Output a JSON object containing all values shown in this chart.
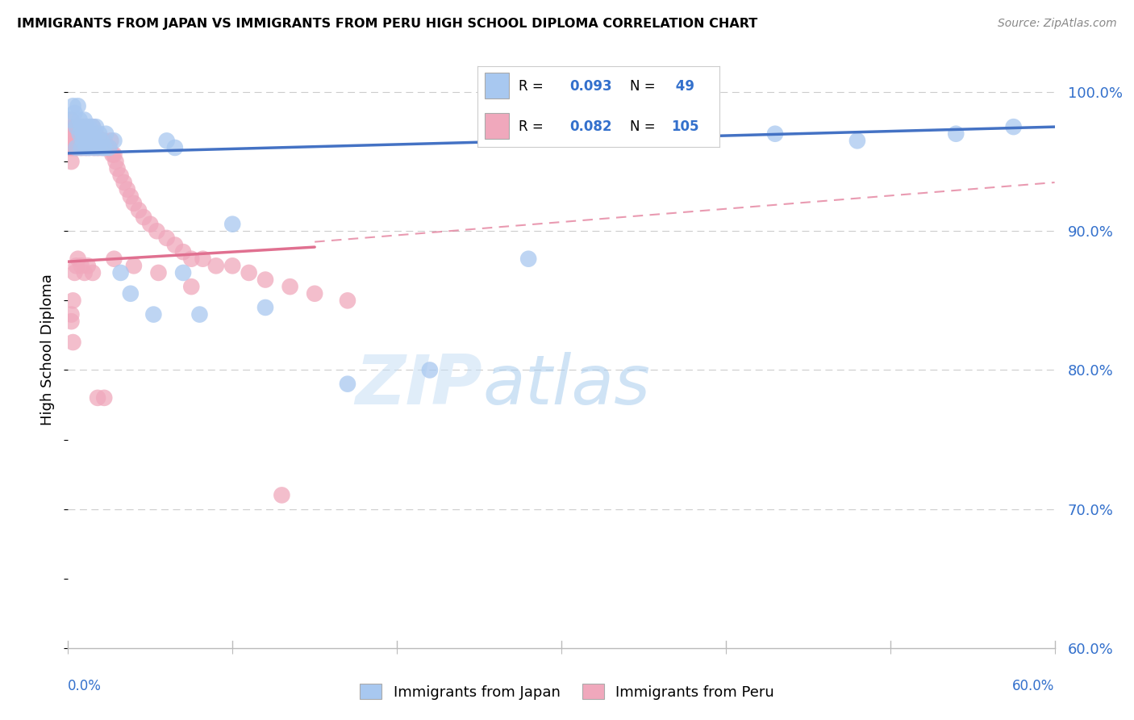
{
  "title": "IMMIGRANTS FROM JAPAN VS IMMIGRANTS FROM PERU HIGH SCHOOL DIPLOMA CORRELATION CHART",
  "source": "Source: ZipAtlas.com",
  "ylabel": "High School Diploma",
  "legend_japan_label": "Immigrants from Japan",
  "legend_peru_label": "Immigrants from Peru",
  "legend_R_japan": "0.093",
  "legend_N_japan": "49",
  "legend_R_peru": "0.082",
  "legend_N_peru": "105",
  "color_japan": "#a8c8f0",
  "color_peru": "#f0a8bc",
  "color_japan_line": "#4472c4",
  "color_peru_line": "#e07090",
  "color_blue_text": "#3370cc",
  "xlim": [
    0.0,
    0.6
  ],
  "ylim": [
    0.6,
    1.03
  ],
  "japan_line": [
    0.956,
    0.975
  ],
  "peru_line_solid": [
    0.878,
    0.92
  ],
  "peru_line_dash": [
    0.878,
    0.935
  ],
  "japan_x": [
    0.002,
    0.003,
    0.004,
    0.005,
    0.005,
    0.006,
    0.007,
    0.007,
    0.008,
    0.008,
    0.009,
    0.009,
    0.01,
    0.01,
    0.011,
    0.011,
    0.012,
    0.013,
    0.013,
    0.014,
    0.015,
    0.016,
    0.016,
    0.017,
    0.018,
    0.019,
    0.02,
    0.021,
    0.022,
    0.023,
    0.025,
    0.028,
    0.032,
    0.038,
    0.052,
    0.06,
    0.065,
    0.07,
    0.08,
    0.1,
    0.12,
    0.17,
    0.22,
    0.28,
    0.39,
    0.43,
    0.48,
    0.54,
    0.575
  ],
  "japan_y": [
    0.98,
    0.99,
    0.985,
    0.975,
    0.96,
    0.99,
    0.97,
    0.98,
    0.96,
    0.975,
    0.965,
    0.97,
    0.97,
    0.98,
    0.96,
    0.975,
    0.97,
    0.96,
    0.975,
    0.965,
    0.975,
    0.96,
    0.965,
    0.975,
    0.96,
    0.97,
    0.965,
    0.96,
    0.96,
    0.97,
    0.96,
    0.965,
    0.87,
    0.855,
    0.84,
    0.965,
    0.96,
    0.87,
    0.84,
    0.905,
    0.845,
    0.79,
    0.8,
    0.88,
    0.97,
    0.97,
    0.965,
    0.97,
    0.975
  ],
  "peru_x": [
    0.001,
    0.001,
    0.002,
    0.002,
    0.002,
    0.003,
    0.003,
    0.003,
    0.004,
    0.004,
    0.004,
    0.005,
    0.005,
    0.005,
    0.006,
    0.006,
    0.006,
    0.007,
    0.007,
    0.007,
    0.008,
    0.008,
    0.008,
    0.009,
    0.009,
    0.009,
    0.01,
    0.01,
    0.01,
    0.01,
    0.011,
    0.011,
    0.011,
    0.012,
    0.012,
    0.012,
    0.013,
    0.013,
    0.013,
    0.014,
    0.014,
    0.015,
    0.015,
    0.015,
    0.016,
    0.016,
    0.017,
    0.017,
    0.018,
    0.018,
    0.019,
    0.019,
    0.02,
    0.02,
    0.021,
    0.021,
    0.022,
    0.022,
    0.023,
    0.024,
    0.025,
    0.026,
    0.027,
    0.028,
    0.029,
    0.03,
    0.032,
    0.034,
    0.036,
    0.038,
    0.04,
    0.043,
    0.046,
    0.05,
    0.054,
    0.06,
    0.065,
    0.07,
    0.075,
    0.082,
    0.09,
    0.1,
    0.11,
    0.12,
    0.135,
    0.15,
    0.17,
    0.075,
    0.055,
    0.04,
    0.028,
    0.015,
    0.012,
    0.01,
    0.008,
    0.006,
    0.005,
    0.004,
    0.003,
    0.002,
    0.002,
    0.003,
    0.018,
    0.022,
    0.13
  ],
  "peru_y": [
    0.96,
    0.97,
    0.95,
    0.98,
    0.96,
    0.965,
    0.975,
    0.96,
    0.96,
    0.975,
    0.97,
    0.96,
    0.975,
    0.965,
    0.96,
    0.97,
    0.975,
    0.96,
    0.97,
    0.975,
    0.965,
    0.97,
    0.96,
    0.96,
    0.97,
    0.975,
    0.96,
    0.975,
    0.965,
    0.97,
    0.96,
    0.975,
    0.965,
    0.96,
    0.965,
    0.97,
    0.96,
    0.965,
    0.97,
    0.965,
    0.97,
    0.965,
    0.96,
    0.975,
    0.96,
    0.965,
    0.96,
    0.97,
    0.965,
    0.96,
    0.96,
    0.965,
    0.96,
    0.965,
    0.96,
    0.965,
    0.96,
    0.965,
    0.96,
    0.96,
    0.96,
    0.965,
    0.955,
    0.955,
    0.95,
    0.945,
    0.94,
    0.935,
    0.93,
    0.925,
    0.92,
    0.915,
    0.91,
    0.905,
    0.9,
    0.895,
    0.89,
    0.885,
    0.88,
    0.88,
    0.875,
    0.875,
    0.87,
    0.865,
    0.86,
    0.855,
    0.85,
    0.86,
    0.87,
    0.875,
    0.88,
    0.87,
    0.875,
    0.87,
    0.875,
    0.88,
    0.875,
    0.87,
    0.82,
    0.835,
    0.84,
    0.85,
    0.78,
    0.78,
    0.71
  ]
}
